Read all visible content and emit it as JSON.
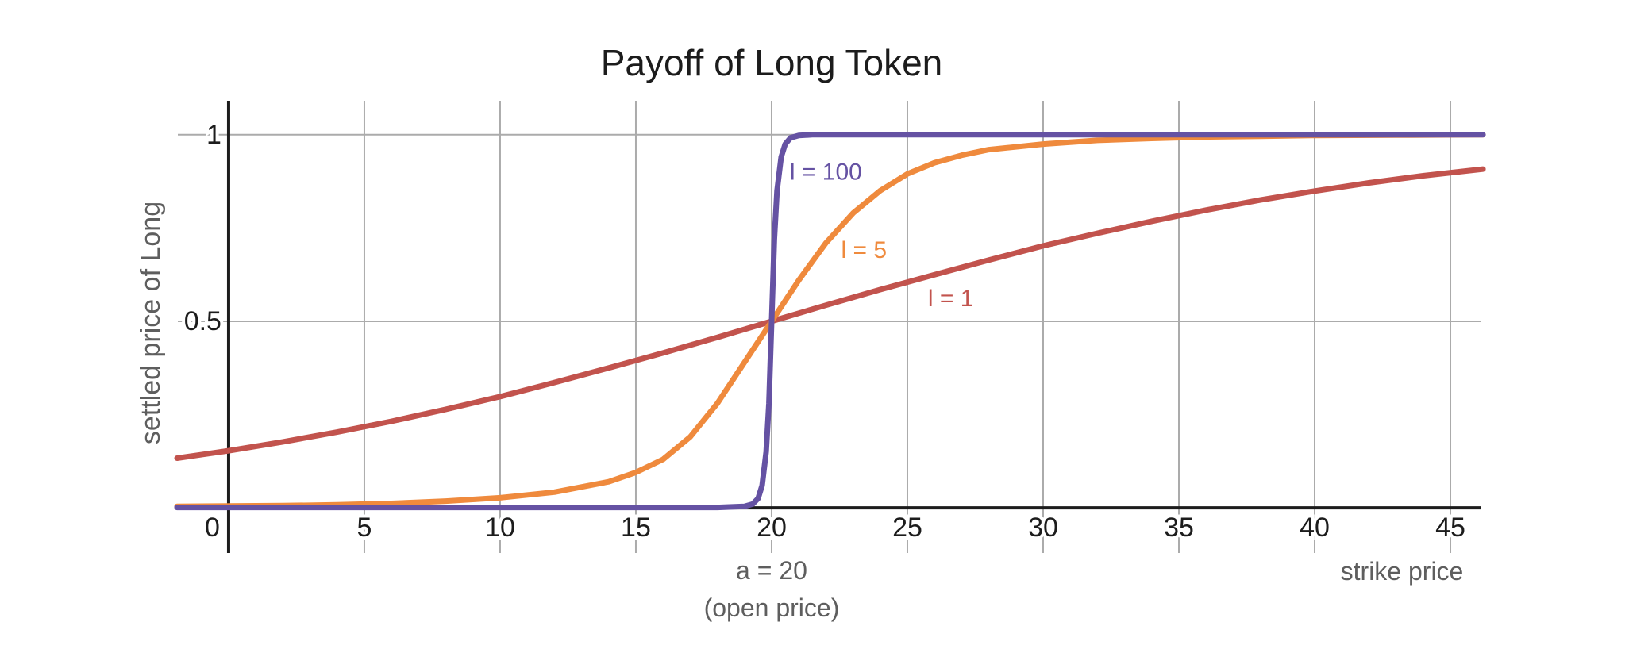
{
  "title": "Payoff of Long Token",
  "colors": {
    "background": "#ffffff",
    "axis": "#1c1c1c",
    "grid": "#ababab",
    "tick_label": "#1c1c1c",
    "muted_label": "#5e5e5e",
    "purple": "#6552a3",
    "orange": "#ef8a3d",
    "red": "#c2534d"
  },
  "chart_data": {
    "type": "line",
    "title": "Payoff of Long Token",
    "xlabel": "strike price",
    "ylabel": "settled price of Long",
    "xlim": [
      -1.87,
      46.14
    ],
    "ylim": [
      -0.121,
      1.091
    ],
    "grid": true,
    "legend_position": "inline-curve-labels",
    "x_ticks": [
      {
        "value": 0,
        "label": "0"
      },
      {
        "value": 5,
        "label": "5"
      },
      {
        "value": 10,
        "label": "10"
      },
      {
        "value": 15,
        "label": "15"
      },
      {
        "value": 20,
        "label": "20"
      },
      {
        "value": 25,
        "label": "25"
      },
      {
        "value": 30,
        "label": "30"
      },
      {
        "value": 35,
        "label": "35"
      },
      {
        "value": 40,
        "label": "40"
      },
      {
        "value": 45,
        "label": "45"
      }
    ],
    "y_ticks": [
      {
        "value": 0.5,
        "label": "0.5"
      },
      {
        "value": 1,
        "label": "1"
      }
    ],
    "crossing_point": {
      "x": 20,
      "y": 0.5
    },
    "series": [
      {
        "name": "l = 1",
        "color": "#c2534d",
        "label": {
          "text": "l = 1",
          "x": 26.6,
          "y": 0.56
        },
        "x": [
          -1.9,
          0,
          2,
          4,
          6,
          8,
          10,
          12,
          14,
          16,
          18,
          20,
          22,
          24,
          26,
          28,
          30,
          32,
          34,
          36,
          38,
          40,
          42,
          44,
          46.2
        ],
        "y": [
          0.133,
          0.153,
          0.177,
          0.203,
          0.232,
          0.264,
          0.298,
          0.336,
          0.375,
          0.415,
          0.457,
          0.5,
          0.543,
          0.585,
          0.625,
          0.664,
          0.702,
          0.736,
          0.768,
          0.798,
          0.825,
          0.849,
          0.871,
          0.89,
          0.908
        ]
      },
      {
        "name": "l = 5",
        "color": "#ef8a3d",
        "label": {
          "text": "l = 5",
          "x": 23.4,
          "y": 0.69
        },
        "x": [
          -1.9,
          0,
          2,
          4,
          6,
          8,
          10,
          12,
          14,
          15,
          16,
          17,
          18,
          19,
          20,
          21,
          22,
          23,
          24,
          25,
          26,
          27,
          28,
          30,
          32,
          34,
          36,
          38,
          40,
          43,
          46.2
        ],
        "y": [
          0.004,
          0.005,
          0.006,
          0.008,
          0.012,
          0.018,
          0.027,
          0.042,
          0.07,
          0.095,
          0.13,
          0.19,
          0.28,
          0.39,
          0.5,
          0.61,
          0.71,
          0.79,
          0.85,
          0.895,
          0.925,
          0.945,
          0.96,
          0.975,
          0.985,
          0.99,
          0.994,
          0.996,
          0.998,
          0.999,
          1.0
        ]
      },
      {
        "name": "l = 100",
        "color": "#6552a3",
        "label": {
          "text": "l = 100",
          "x": 22.0,
          "y": 0.9
        },
        "x": [
          -1.9,
          5,
          10,
          15,
          18,
          19,
          19.3,
          19.5,
          19.65,
          19.8,
          19.9,
          20,
          20.1,
          20.2,
          20.35,
          20.5,
          20.7,
          21,
          21.5,
          22,
          25,
          30,
          35,
          40,
          46.2
        ],
        "y": [
          0.001,
          0.001,
          0.001,
          0.001,
          0.001,
          0.004,
          0.01,
          0.025,
          0.06,
          0.15,
          0.28,
          0.5,
          0.72,
          0.85,
          0.94,
          0.975,
          0.992,
          0.998,
          1,
          1,
          1,
          1,
          1,
          1,
          1
        ]
      }
    ],
    "annotations": [
      {
        "text": "a = 20",
        "x": 20,
        "y": -0.168,
        "color": "#5e5e5e"
      },
      {
        "text": "(open price)",
        "x": 20,
        "y": -0.268,
        "color": "#5e5e5e"
      }
    ]
  }
}
